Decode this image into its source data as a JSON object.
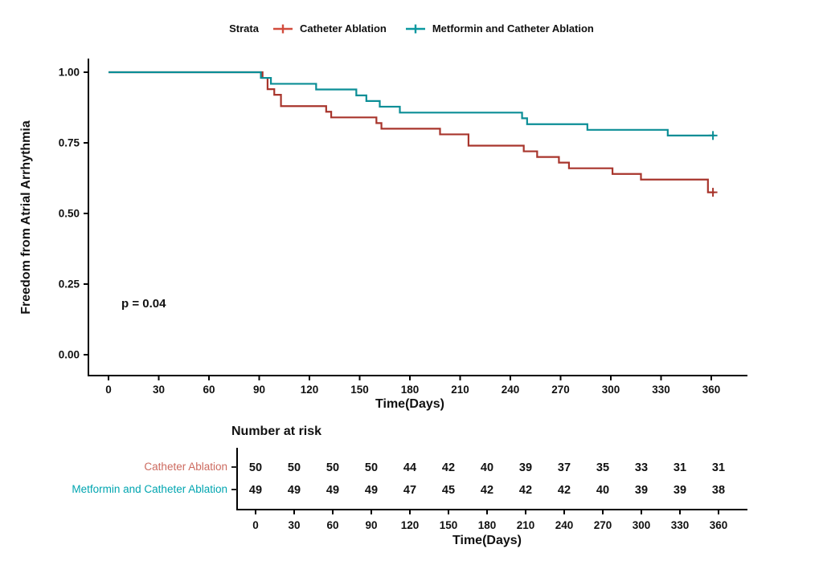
{
  "legend": {
    "title": "Strata",
    "items": [
      {
        "label": "Catheter Ablation",
        "color": "#d24b3c"
      },
      {
        "label": "Metformin and Catheter Ablation",
        "color": "#0b98a0"
      }
    ]
  },
  "chart_data": {
    "type": "line",
    "subtype": "kaplan-meier-step",
    "xlabel": "Time(Days)",
    "ylabel": "Freedom from Atrial Arrhythmia",
    "annotation": "p = 0.04",
    "xlim": [
      0,
      382
    ],
    "ylim": [
      -0.07,
      1.05
    ],
    "xticks": [
      0,
      30,
      60,
      90,
      120,
      150,
      180,
      210,
      240,
      270,
      300,
      330,
      360
    ],
    "yticks": [
      1.0,
      0.75,
      0.5,
      0.25,
      0.0
    ],
    "ytick_labels": [
      "1.00",
      "0.75",
      "0.50",
      "0.25",
      "0.00"
    ],
    "grid": false,
    "legend_position": "top",
    "censor_marker": "+",
    "series": [
      {
        "name": "Catheter Ablation",
        "color": "#a8352c",
        "steps": [
          [
            0,
            1.0
          ],
          [
            92,
            0.98
          ],
          [
            95,
            0.94
          ],
          [
            99,
            0.92
          ],
          [
            103,
            0.88
          ],
          [
            130,
            0.86
          ],
          [
            133,
            0.84
          ],
          [
            160,
            0.82
          ],
          [
            163,
            0.8
          ],
          [
            198,
            0.78
          ],
          [
            215,
            0.74
          ],
          [
            248,
            0.72
          ],
          [
            256,
            0.7
          ],
          [
            269,
            0.68
          ],
          [
            275,
            0.66
          ],
          [
            301,
            0.64
          ],
          [
            318,
            0.62
          ],
          [
            358,
            0.575
          ]
        ],
        "end_time": 362,
        "censor": [
          361,
          0.575
        ]
      },
      {
        "name": "Metformin and Catheter Ablation",
        "color": "#0b8e96",
        "steps": [
          [
            0,
            1.0
          ],
          [
            91,
            0.98
          ],
          [
            97,
            0.959
          ],
          [
            124,
            0.939
          ],
          [
            148,
            0.918
          ],
          [
            154,
            0.898
          ],
          [
            162,
            0.878
          ],
          [
            174,
            0.857
          ],
          [
            247,
            0.837
          ],
          [
            250,
            0.816
          ],
          [
            286,
            0.796
          ],
          [
            334,
            0.776
          ]
        ],
        "end_time": 362,
        "censor": [
          361,
          0.776
        ]
      }
    ]
  },
  "risk_table": {
    "title": "Number at risk",
    "xlabel": "Time(Days)",
    "times": [
      0,
      30,
      60,
      90,
      120,
      150,
      180,
      210,
      240,
      270,
      300,
      330,
      360
    ],
    "rows": [
      {
        "label": "Catheter Ablation",
        "color": "#cc6a5f",
        "values": [
          50,
          50,
          50,
          50,
          44,
          42,
          40,
          39,
          37,
          35,
          33,
          31,
          31
        ]
      },
      {
        "label": "Metformin and Catheter Ablation",
        "color": "#00a5b0",
        "values": [
          49,
          49,
          49,
          49,
          47,
          45,
          42,
          42,
          42,
          40,
          39,
          39,
          38
        ]
      }
    ]
  }
}
